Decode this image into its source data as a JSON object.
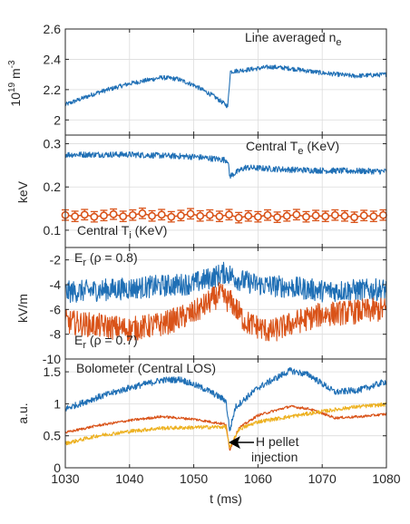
{
  "figure": {
    "xlabel": "t (ms)",
    "xlim": [
      1030,
      1080
    ],
    "xticks": [
      "1030",
      "1040",
      "1050",
      "1060",
      "1070",
      "1080"
    ],
    "xtick_values": [
      1030,
      1040,
      1050,
      1060,
      1070,
      1080
    ]
  },
  "colors": {
    "blue": "#1f6fb5",
    "orange": "#d95319",
    "yellow": "#edb120"
  },
  "chart_data": [
    {
      "type": "line",
      "title": "",
      "xlabel": "",
      "ylabel": "10 19 m -3",
      "ylabel_parts": {
        "base": "10",
        "exp": "19",
        "unit": " m",
        "unit_exp": "-3"
      },
      "ylim": [
        1.9,
        2.6
      ],
      "yticks": [
        2,
        2.2,
        2.4,
        2.6
      ],
      "annotations": [
        {
          "text": "Line averaged n",
          "sub": "e"
        }
      ],
      "series": [
        {
          "color": "blue",
          "noise": 0.015,
          "x": [
            1030,
            1035,
            1040,
            1045,
            1047.5,
            1050,
            1053,
            1055.3,
            1055.7,
            1056,
            1058,
            1062,
            1065,
            1070,
            1075,
            1080
          ],
          "y": [
            2.1,
            2.18,
            2.24,
            2.28,
            2.27,
            2.23,
            2.16,
            2.09,
            2.32,
            2.32,
            2.33,
            2.35,
            2.34,
            2.31,
            2.29,
            2.3
          ]
        }
      ]
    },
    {
      "type": "line",
      "title": "",
      "xlabel": "",
      "ylabel": "keV",
      "ylim": [
        0.06,
        0.32
      ],
      "yticks": [
        0.1,
        0.2,
        0.3
      ],
      "annotations": [
        {
          "text": "Central T",
          "sub": "e",
          "after": " (KeV)"
        },
        {
          "text": "Central T",
          "sub": "i",
          "after": " (KeV)"
        }
      ],
      "series": [
        {
          "color": "blue",
          "noise": 0.007,
          "x": [
            1030,
            1040,
            1050,
            1055.3,
            1055.6,
            1058,
            1065,
            1070,
            1080
          ],
          "y": [
            0.275,
            0.275,
            0.27,
            0.262,
            0.225,
            0.245,
            0.24,
            0.238,
            0.236
          ]
        },
        {
          "color": "orange",
          "marker": "o",
          "errorbar": 0.012,
          "x": [
            1030,
            1031.5,
            1033,
            1034.5,
            1036,
            1037.5,
            1039,
            1040.5,
            1042,
            1043.5,
            1045,
            1046.5,
            1048,
            1049.5,
            1051,
            1052.5,
            1054,
            1055.5,
            1057,
            1058.5,
            1060,
            1061.5,
            1063,
            1064.5,
            1066,
            1067.5,
            1069,
            1070.5,
            1072,
            1073.5,
            1075,
            1076.5,
            1078,
            1079.5
          ],
          "y": [
            0.135,
            0.132,
            0.136,
            0.131,
            0.134,
            0.137,
            0.132,
            0.135,
            0.139,
            0.133,
            0.136,
            0.131,
            0.134,
            0.138,
            0.133,
            0.135,
            0.132,
            0.136,
            0.129,
            0.133,
            0.131,
            0.135,
            0.13,
            0.133,
            0.136,
            0.131,
            0.134,
            0.132,
            0.135,
            0.133,
            0.13,
            0.134,
            0.132,
            0.135
          ]
        }
      ]
    },
    {
      "type": "line",
      "title": "",
      "xlabel": "",
      "ylabel": "kV/m",
      "ylim": [
        -10,
        -1
      ],
      "yticks": [
        -10,
        -8,
        -6,
        -4,
        -2
      ],
      "annotations": [
        {
          "text": "E",
          "sub": "r",
          "after": " (ρ = 0.8)"
        },
        {
          "text": "E",
          "sub": "r",
          "after": " (ρ = 0.7)"
        }
      ],
      "series": [
        {
          "color": "blue",
          "noise": 0.9,
          "x": [
            1030,
            1040,
            1050,
            1053,
            1055,
            1057,
            1060,
            1065,
            1070,
            1080
          ],
          "y": [
            -4.6,
            -4.3,
            -3.9,
            -3.4,
            -3.0,
            -3.6,
            -4.0,
            -4.2,
            -4.5,
            -4.4
          ]
        },
        {
          "color": "orange",
          "noise": 1.0,
          "x": [
            1030,
            1035,
            1040,
            1045,
            1050,
            1054,
            1056,
            1058,
            1062,
            1066,
            1070,
            1075,
            1080
          ],
          "y": [
            -7.0,
            -7.3,
            -7.6,
            -7.2,
            -6.3,
            -4.8,
            -5.5,
            -7.0,
            -7.8,
            -7.0,
            -6.4,
            -6.2,
            -6.0
          ]
        }
      ]
    },
    {
      "type": "line",
      "title": "",
      "xlabel": "t (ms)",
      "ylabel": "a.u.",
      "ylim": [
        0,
        1.7
      ],
      "yticks": [
        0,
        0.5,
        1,
        1.5
      ],
      "annotations": [
        {
          "text": "Bolometer (Central LOS)"
        },
        {
          "text": "H pellet"
        },
        {
          "text": "injection"
        }
      ],
      "series": [
        {
          "color": "blue",
          "noise": 0.05,
          "x": [
            1030,
            1035,
            1040,
            1045,
            1048,
            1052,
            1055,
            1055.6,
            1056.5,
            1060,
            1065,
            1068,
            1072,
            1076,
            1080
          ],
          "y": [
            0.92,
            1.1,
            1.25,
            1.37,
            1.38,
            1.22,
            1.05,
            0.58,
            0.95,
            1.25,
            1.52,
            1.45,
            1.18,
            1.22,
            1.35
          ]
        },
        {
          "color": "orange",
          "noise": 0.02,
          "x": [
            1030,
            1035,
            1040,
            1045,
            1050,
            1055,
            1055.6,
            1057,
            1060,
            1065,
            1068,
            1072,
            1076,
            1080
          ],
          "y": [
            0.55,
            0.66,
            0.74,
            0.8,
            0.76,
            0.68,
            0.28,
            0.62,
            0.82,
            0.96,
            0.92,
            0.78,
            0.8,
            0.84
          ]
        },
        {
          "color": "yellow",
          "noise": 0.03,
          "x": [
            1030,
            1035,
            1040,
            1045,
            1050,
            1055,
            1055.6,
            1057,
            1060,
            1065,
            1070,
            1075,
            1080
          ],
          "y": [
            0.38,
            0.5,
            0.57,
            0.62,
            0.63,
            0.64,
            0.3,
            0.6,
            0.72,
            0.8,
            0.88,
            0.95,
            0.99
          ]
        }
      ]
    }
  ]
}
